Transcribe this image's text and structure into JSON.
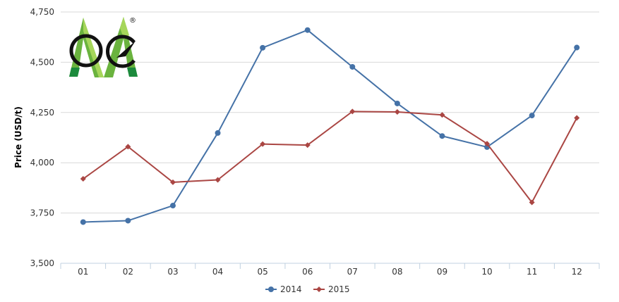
{
  "logo": {
    "colors": {
      "green_light": "#9bd04a",
      "green_dark": "#1c8a3c",
      "ring": "#111111"
    },
    "trademark": "®"
  },
  "chart_data": {
    "type": "line",
    "title": "",
    "xlabel": "",
    "ylabel": "Price (USD/t)",
    "categories": [
      "01",
      "02",
      "03",
      "04",
      "05",
      "06",
      "07",
      "08",
      "09",
      "10",
      "11",
      "12"
    ],
    "ylim": [
      3500,
      4750
    ],
    "yticks": [
      3500,
      3750,
      4000,
      4250,
      4500,
      4750
    ],
    "ytick_labels": [
      "3,500",
      "3,750",
      "4,000",
      "4,250",
      "4,500",
      "4,750"
    ],
    "grid": true,
    "legend": "bottom-center",
    "series": [
      {
        "name": "2014",
        "color": "#4572a7",
        "marker": "circle",
        "values": [
          3705,
          3712,
          3787,
          4148,
          4572,
          4660,
          4477,
          4295,
          4133,
          4078,
          4235,
          4573
        ]
      },
      {
        "name": "2015",
        "color": "#aa4643",
        "marker": "diamond",
        "values": [
          3920,
          4080,
          3903,
          3915,
          4093,
          4088,
          4255,
          4253,
          4238,
          4095,
          3803,
          4223
        ]
      }
    ]
  }
}
